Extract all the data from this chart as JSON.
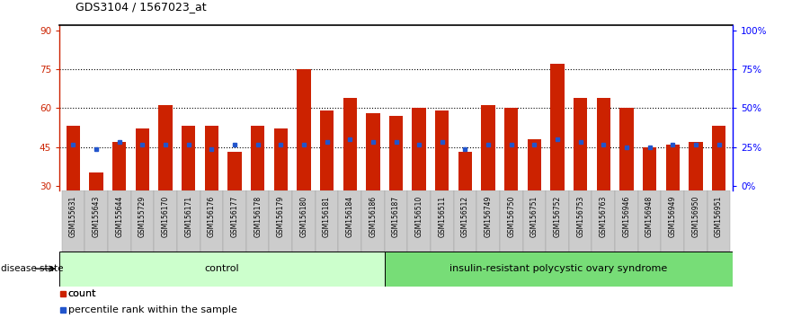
{
  "title": "GDS3104 / 1567023_at",
  "samples": [
    "GSM155631",
    "GSM155643",
    "GSM155644",
    "GSM155729",
    "GSM156170",
    "GSM156171",
    "GSM156176",
    "GSM156177",
    "GSM156178",
    "GSM156179",
    "GSM156180",
    "GSM156181",
    "GSM156184",
    "GSM156186",
    "GSM156187",
    "GSM156510",
    "GSM156511",
    "GSM156512",
    "GSM156749",
    "GSM156750",
    "GSM156751",
    "GSM156752",
    "GSM156753",
    "GSM156763",
    "GSM156946",
    "GSM156948",
    "GSM156949",
    "GSM156950",
    "GSM156951"
  ],
  "bar_heights": [
    53,
    35,
    47,
    52,
    61,
    53,
    53,
    43,
    53,
    52,
    75,
    59,
    64,
    58,
    57,
    60,
    59,
    43,
    61,
    60,
    48,
    77,
    64,
    64,
    60,
    45,
    46,
    47,
    53
  ],
  "blue_marker_values": [
    46,
    44,
    47,
    46,
    46,
    46,
    44,
    46,
    46,
    46,
    46,
    47,
    48,
    47,
    47,
    46,
    47,
    44,
    46,
    46,
    46,
    48,
    47,
    46,
    45,
    45,
    46,
    46,
    46
  ],
  "control_count": 14,
  "control_label": "control",
  "disease_label": "insulin-resistant polycystic ovary syndrome",
  "disease_state_label": "disease state",
  "left_yticks": [
    30,
    45,
    60,
    75,
    90
  ],
  "ylim_left": [
    28,
    92
  ],
  "bar_color": "#CC2200",
  "blue_color": "#2255CC",
  "control_bg": "#CCFFCC",
  "disease_bg": "#77DD77",
  "bg_color": "#FFFFFF",
  "tick_label_bg": "#CCCCCC"
}
